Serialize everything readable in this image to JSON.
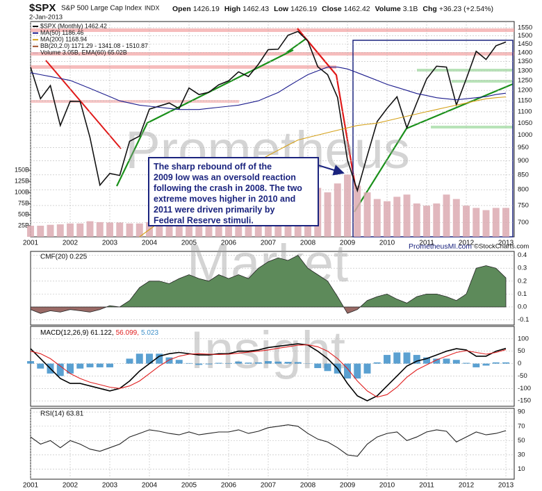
{
  "header": {
    "symbol": "$SPX",
    "name": "S&P 500 Large Cap Index",
    "exchange": "INDX",
    "date": "2-Jan-2013",
    "quote": [
      {
        "label": "Open",
        "value": "1426.19"
      },
      {
        "label": "High",
        "value": "1462.43"
      },
      {
        "label": "Low",
        "value": "1426.19"
      },
      {
        "label": "Close",
        "value": "1462.42"
      },
      {
        "label": "Volume",
        "value": "3.1B"
      },
      {
        "label": "Chg",
        "value": "+36.23 (+2.54%)"
      }
    ],
    "site": "PrometheusMI.com",
    "credit": "©StockCharts.com"
  },
  "watermark": [
    "Prometheus",
    "Market",
    "Insight"
  ],
  "annotation": [
    "The sharp rebound off of the",
    "2009 low was an oversold reaction",
    "following the crash in 2008. The two",
    "extreme moves higher in 2010 and",
    "2011 were driven primarily by",
    "Federal Reserve stimuli."
  ],
  "chart_data": [
    {
      "type": "line",
      "log_scale": true,
      "grid": true,
      "x": [
        2001,
        2001.25,
        2001.5,
        2001.75,
        2002,
        2002.25,
        2002.5,
        2002.75,
        2003,
        2003.25,
        2003.5,
        2003.75,
        2004,
        2004.25,
        2004.5,
        2004.75,
        2005,
        2005.25,
        2005.5,
        2005.75,
        2006,
        2006.25,
        2006.5,
        2006.75,
        2007,
        2007.25,
        2007.5,
        2007.75,
        2008,
        2008.25,
        2008.5,
        2008.75,
        2009,
        2009.25,
        2009.5,
        2009.75,
        2010,
        2010.25,
        2010.5,
        2010.75,
        2011,
        2011.25,
        2011.5,
        2011.75,
        2012,
        2012.25,
        2012.5,
        2012.75,
        2013
      ],
      "xlim": [
        2001,
        2013.21
      ],
      "xticks": [
        2001,
        2002,
        2003,
        2004,
        2005,
        2006,
        2007,
        2008,
        2009,
        2010,
        2011,
        2012,
        2013
      ],
      "ylim": [
        660,
        1590
      ],
      "yticks": [
        1550,
        1500,
        1450,
        1400,
        1350,
        1300,
        1250,
        1200,
        1150,
        1100,
        1050,
        1000,
        950,
        900,
        850,
        800,
        750,
        700
      ],
      "y2lim": [
        0,
        484
      ],
      "y2ticks": [
        {
          "value": 25,
          "label": "25B"
        },
        {
          "value": 50,
          "label": "50B"
        },
        {
          "value": 75,
          "label": "75B"
        },
        {
          "value": 100,
          "label": "100B"
        },
        {
          "value": 125,
          "label": "125B"
        },
        {
          "value": 150,
          "label": "150B"
        }
      ],
      "legend_extra": "BB(20,2.0) 1171.29 - 1341.08 - 1510.87",
      "series": [
        {
          "name": "$SPX (Monthly) 1462.42",
          "color": "#111111",
          "values": [
            1320,
            1160,
            1224,
            1040,
            1148,
            1147,
            990,
            815,
            855,
            848,
            975,
            996,
            1112,
            1126,
            1140,
            1114,
            1212,
            1180,
            1191,
            1228,
            1248,
            1295,
            1270,
            1335,
            1418,
            1420,
            1503,
            1527,
            1468,
            1322,
            1280,
            1166,
            903,
            797,
            919,
            1057,
            1115,
            1169,
            1030,
            1141,
            1258,
            1325,
            1320,
            1131,
            1258,
            1408,
            1362,
            1440,
            1462.42
          ]
        },
        {
          "name": "MA(50) 1186.46",
          "color": "#1a1a8c",
          "values": [
            1290,
            1280,
            1270,
            1260,
            1250,
            1230,
            1210,
            1190,
            1170,
            1150,
            1140,
            1130,
            1125,
            1120,
            1115,
            1110,
            1110,
            1110,
            1115,
            1120,
            1125,
            1130,
            1140,
            1150,
            1170,
            1190,
            1220,
            1250,
            1280,
            1300,
            1320,
            1320,
            1310,
            1290,
            1270,
            1250,
            1230,
            1215,
            1200,
            1185,
            1175,
            1165,
            1160,
            1155,
            1160,
            1165,
            1170,
            1180,
            1186.46
          ]
        },
        {
          "name": "MA(200) 1168.94",
          "color": "#d4a017",
          "values": [
            null,
            null,
            null,
            null,
            null,
            null,
            null,
            null,
            null,
            null,
            null,
            660,
            680,
            700,
            720,
            740,
            760,
            780,
            800,
            820,
            840,
            860,
            880,
            900,
            920,
            940,
            960,
            980,
            990,
            1000,
            1010,
            1020,
            1030,
            1040,
            1045,
            1050,
            1060,
            1070,
            1080,
            1090,
            1100,
            1110,
            1120,
            1130,
            1140,
            1150,
            1160,
            1165,
            1168.94
          ]
        },
        {
          "name": "Volume 3.05B, EMA(60) 65.02B",
          "color": "#dcaab2",
          "axis": "y2",
          "type": "bar",
          "values": [
            25,
            25,
            27,
            28,
            30,
            30,
            35,
            33,
            32,
            32,
            30,
            30,
            33,
            32,
            32,
            33,
            35,
            36,
            38,
            40,
            42,
            45,
            45,
            47,
            50,
            55,
            70,
            90,
            100,
            110,
            100,
            120,
            140,
            115,
            100,
            85,
            80,
            90,
            95,
            75,
            70,
            75,
            95,
            85,
            70,
            65,
            60,
            65,
            65
          ]
        }
      ]
    },
    {
      "type": "area",
      "title": "CMF(20) 0.225",
      "grid": true,
      "x": [
        2001,
        2001.25,
        2001.5,
        2001.75,
        2002,
        2002.25,
        2002.5,
        2002.75,
        2003,
        2003.25,
        2003.5,
        2003.75,
        2004,
        2004.25,
        2004.5,
        2004.75,
        2005,
        2005.25,
        2005.5,
        2005.75,
        2006,
        2006.25,
        2006.5,
        2006.75,
        2007,
        2007.25,
        2007.5,
        2007.75,
        2008,
        2008.25,
        2008.5,
        2008.75,
        2009,
        2009.25,
        2009.5,
        2009.75,
        2010,
        2010.25,
        2010.5,
        2010.75,
        2011,
        2011.25,
        2011.5,
        2011.75,
        2012,
        2012.25,
        2012.5,
        2012.75,
        2013
      ],
      "xlim": [
        2001,
        2013.21
      ],
      "ylim": [
        -0.14,
        0.43
      ],
      "yticks": [
        0.4,
        0.3,
        0.2,
        0.1,
        {
          "value": 0,
          "label": "0.0"
        },
        -0.1
      ],
      "color": "#5d8a5a",
      "negative_color": "#9a6a66",
      "values": [
        -0.02,
        -0.05,
        -0.03,
        -0.04,
        -0.02,
        -0.03,
        -0.04,
        -0.02,
        0.01,
        0.0,
        0.05,
        0.15,
        0.2,
        0.2,
        0.18,
        0.22,
        0.25,
        0.22,
        0.2,
        0.25,
        0.22,
        0.25,
        0.22,
        0.3,
        0.35,
        0.38,
        0.36,
        0.4,
        0.3,
        0.25,
        0.2,
        0.08,
        -0.05,
        -0.02,
        0.05,
        0.08,
        0.1,
        0.06,
        0.03,
        0.08,
        0.1,
        0.1,
        0.08,
        0.05,
        0.1,
        0.3,
        0.32,
        0.3,
        0.225
      ]
    },
    {
      "type": "line",
      "grid": true,
      "x": [
        2001,
        2001.25,
        2001.5,
        2001.75,
        2002,
        2002.25,
        2002.5,
        2002.75,
        2003,
        2003.25,
        2003.5,
        2003.75,
        2004,
        2004.25,
        2004.5,
        2004.75,
        2005,
        2005.25,
        2005.5,
        2005.75,
        2006,
        2006.25,
        2006.5,
        2006.75,
        2007,
        2007.25,
        2007.5,
        2007.75,
        2008,
        2008.25,
        2008.5,
        2008.75,
        2009,
        2009.25,
        2009.5,
        2009.75,
        2010,
        2010.25,
        2010.5,
        2010.75,
        2011,
        2011.25,
        2011.5,
        2011.75,
        2012,
        2012.25,
        2012.5,
        2012.75,
        2013
      ],
      "xlim": [
        2001,
        2013.21
      ],
      "ylim": [
        -172,
        150
      ],
      "yticks": [
        100,
        50,
        0,
        -50,
        -100,
        -150
      ],
      "series": [
        {
          "name": "MACD(12,26,9) 61.122,",
          "color": "#000000",
          "values": [
            60,
            20,
            -20,
            -60,
            -80,
            -80,
            -90,
            -100,
            -110,
            -100,
            -70,
            -30,
            0,
            30,
            40,
            45,
            40,
            35,
            35,
            40,
            40,
            50,
            50,
            55,
            65,
            70,
            75,
            80,
            75,
            50,
            20,
            -20,
            -80,
            -130,
            -150,
            -130,
            -90,
            -50,
            -10,
            10,
            20,
            35,
            50,
            60,
            55,
            30,
            30,
            50,
            61.122
          ]
        },
        {
          "name": "56.099,",
          "color": "#e02020",
          "values": [
            50,
            40,
            20,
            -10,
            -40,
            -60,
            -75,
            -85,
            -95,
            -100,
            -90,
            -70,
            -40,
            -10,
            15,
            30,
            38,
            40,
            38,
            37,
            38,
            42,
            46,
            50,
            55,
            62,
            68,
            74,
            76,
            68,
            50,
            20,
            -20,
            -70,
            -110,
            -135,
            -125,
            -95,
            -55,
            -25,
            -5,
            15,
            30,
            45,
            52,
            45,
            38,
            45,
            56.099
          ]
        },
        {
          "name": "5.023",
          "color": "#3d8fc9",
          "type": "bar",
          "values": [
            10,
            -20,
            -40,
            -50,
            -40,
            -20,
            -15,
            -15,
            -15,
            0,
            20,
            40,
            40,
            40,
            25,
            15,
            2,
            -5,
            -3,
            3,
            2,
            8,
            4,
            5,
            10,
            8,
            7,
            6,
            -1,
            -18,
            -30,
            -40,
            -60,
            -60,
            -40,
            5,
            35,
            45,
            45,
            35,
            25,
            20,
            20,
            15,
            3,
            -15,
            -8,
            5,
            5.023
          ]
        }
      ]
    },
    {
      "type": "line",
      "title": "RSI(14) 63.81",
      "grid": true,
      "x": [
        2001,
        2001.25,
        2001.5,
        2001.75,
        2002,
        2002.25,
        2002.5,
        2002.75,
        2003,
        2003.25,
        2003.5,
        2003.75,
        2004,
        2004.25,
        2004.5,
        2004.75,
        2005,
        2005.25,
        2005.5,
        2005.75,
        2006,
        2006.25,
        2006.5,
        2006.75,
        2007,
        2007.25,
        2007.5,
        2007.75,
        2008,
        2008.25,
        2008.5,
        2008.75,
        2009,
        2009.25,
        2009.5,
        2009.75,
        2010,
        2010.25,
        2010.5,
        2010.75,
        2011,
        2011.25,
        2011.5,
        2011.75,
        2012,
        2012.25,
        2012.5,
        2012.75,
        2013
      ],
      "xlim": [
        2001,
        2013.21
      ],
      "xticks": [
        2001,
        2002,
        2003,
        2004,
        2005,
        2006,
        2007,
        2008,
        2009,
        2010,
        2011,
        2012,
        2013
      ],
      "ylim": [
        -4,
        95
      ],
      "yticks": [
        90,
        70,
        50,
        30,
        10
      ],
      "color": "#222222",
      "values": [
        55,
        45,
        50,
        40,
        50,
        45,
        38,
        35,
        40,
        45,
        55,
        60,
        65,
        63,
        60,
        58,
        62,
        58,
        60,
        62,
        62,
        65,
        60,
        63,
        68,
        70,
        72,
        70,
        60,
        52,
        48,
        40,
        30,
        28,
        45,
        55,
        60,
        62,
        50,
        55,
        62,
        65,
        63,
        48,
        55,
        62,
        58,
        60,
        63.81
      ]
    }
  ]
}
